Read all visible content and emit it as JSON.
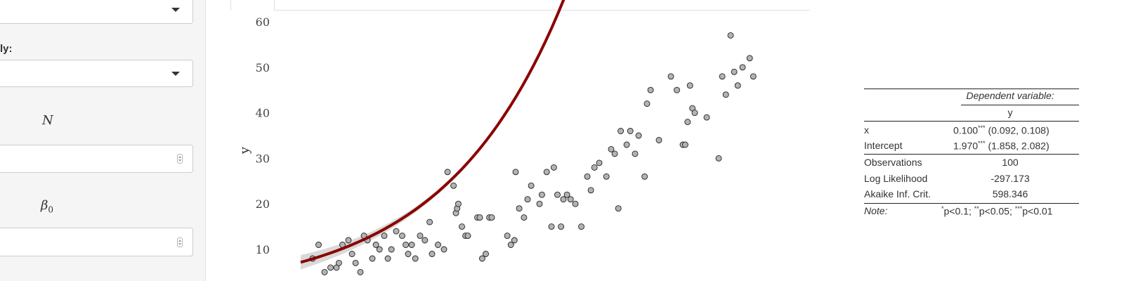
{
  "sidebar": {
    "partial_label": "ly:",
    "n_label": "N",
    "beta_label": "β",
    "beta_sub": "0"
  },
  "chart_data": {
    "type": "scatter",
    "ylabel": "y",
    "xlabel": "",
    "y_ticks": [
      10,
      20,
      30,
      40,
      50,
      60
    ],
    "ylim": [
      4,
      62
    ],
    "xlim": [
      0,
      40
    ],
    "grid": false,
    "points": [
      [
        1,
        8
      ],
      [
        1.5,
        11
      ],
      [
        2,
        5
      ],
      [
        2.5,
        6
      ],
      [
        3,
        6
      ],
      [
        3.2,
        7
      ],
      [
        3.5,
        11
      ],
      [
        4,
        12
      ],
      [
        4.3,
        9
      ],
      [
        4.6,
        7
      ],
      [
        5,
        5
      ],
      [
        5.3,
        13
      ],
      [
        5.6,
        12
      ],
      [
        6,
        8
      ],
      [
        6.3,
        11
      ],
      [
        6.6,
        10
      ],
      [
        7,
        13
      ],
      [
        7.3,
        8
      ],
      [
        7.6,
        10
      ],
      [
        8,
        14
      ],
      [
        8.5,
        13
      ],
      [
        8.8,
        11
      ],
      [
        9,
        9
      ],
      [
        9.3,
        11
      ],
      [
        9.6,
        8
      ],
      [
        10,
        13
      ],
      [
        10.4,
        12
      ],
      [
        10.8,
        16
      ],
      [
        11,
        9
      ],
      [
        11.5,
        11
      ],
      [
        12,
        10
      ],
      [
        12.3,
        27
      ],
      [
        12.8,
        24
      ],
      [
        13,
        18
      ],
      [
        13.1,
        19
      ],
      [
        13.2,
        20
      ],
      [
        13.5,
        15
      ],
      [
        13.8,
        13
      ],
      [
        14,
        13
      ],
      [
        14.8,
        17
      ],
      [
        15,
        17
      ],
      [
        15.2,
        8
      ],
      [
        15.5,
        9
      ],
      [
        15.8,
        17
      ],
      [
        16,
        17
      ],
      [
        17.3,
        13
      ],
      [
        17.6,
        11
      ],
      [
        17.9,
        12
      ],
      [
        18,
        27
      ],
      [
        18.3,
        19
      ],
      [
        18.7,
        17
      ],
      [
        19,
        21
      ],
      [
        19.3,
        24
      ],
      [
        20,
        20
      ],
      [
        20.2,
        22
      ],
      [
        20.6,
        27
      ],
      [
        21,
        15
      ],
      [
        21.2,
        28
      ],
      [
        21.5,
        22
      ],
      [
        21.8,
        15
      ],
      [
        22,
        21
      ],
      [
        22.3,
        22
      ],
      [
        22.6,
        21
      ],
      [
        23,
        20
      ],
      [
        23.5,
        15
      ],
      [
        24,
        26
      ],
      [
        24.3,
        23
      ],
      [
        24.6,
        28
      ],
      [
        25,
        29
      ],
      [
        26,
        32
      ],
      [
        26.3,
        31
      ],
      [
        26.6,
        19
      ],
      [
        26.8,
        36
      ],
      [
        27.3,
        33
      ],
      [
        27.6,
        36
      ],
      [
        28,
        31
      ],
      [
        28.3,
        35
      ],
      [
        28.8,
        26
      ],
      [
        29,
        42
      ],
      [
        29.3,
        45
      ],
      [
        30,
        34
      ],
      [
        31,
        48
      ],
      [
        31.5,
        45
      ],
      [
        32,
        33
      ],
      [
        32.2,
        33
      ],
      [
        32.4,
        38
      ],
      [
        32.6,
        46
      ],
      [
        32.8,
        41
      ],
      [
        33,
        40
      ],
      [
        34,
        39
      ],
      [
        35,
        30
      ],
      [
        35.3,
        48
      ],
      [
        35.6,
        44
      ],
      [
        36,
        57
      ],
      [
        36.3,
        49
      ],
      [
        36.6,
        46
      ],
      [
        37,
        50
      ],
      [
        37.6,
        52
      ],
      [
        37.9,
        48
      ],
      [
        25.6,
        26
      ]
    ],
    "fit": {
      "intercept": 1.97,
      "slope": 0.1,
      "color": "#8b0000",
      "band_color": "#d9d9d9"
    }
  },
  "regression_table": {
    "header": "Dependent variable:",
    "dep_var": "y",
    "rows": [
      {
        "label": "x",
        "coef": "0.100",
        "stars": "***",
        "ci": " (0.092, 0.108)"
      },
      {
        "label": "Intercept",
        "coef": "1.970",
        "stars": "***",
        "ci": " (1.858, 2.082)"
      }
    ],
    "stats": [
      {
        "label": "Observations",
        "value": "100"
      },
      {
        "label": "Log Likelihood",
        "value": "-297.173"
      },
      {
        "label": "Akaike Inf. Crit.",
        "value": "598.346"
      }
    ],
    "note_label": "Note:",
    "note": {
      "s1": "*",
      "t1": "p<0.1; ",
      "s2": "**",
      "t2": "p<0.05; ",
      "s3": "***",
      "t3": "p<0.01"
    }
  }
}
